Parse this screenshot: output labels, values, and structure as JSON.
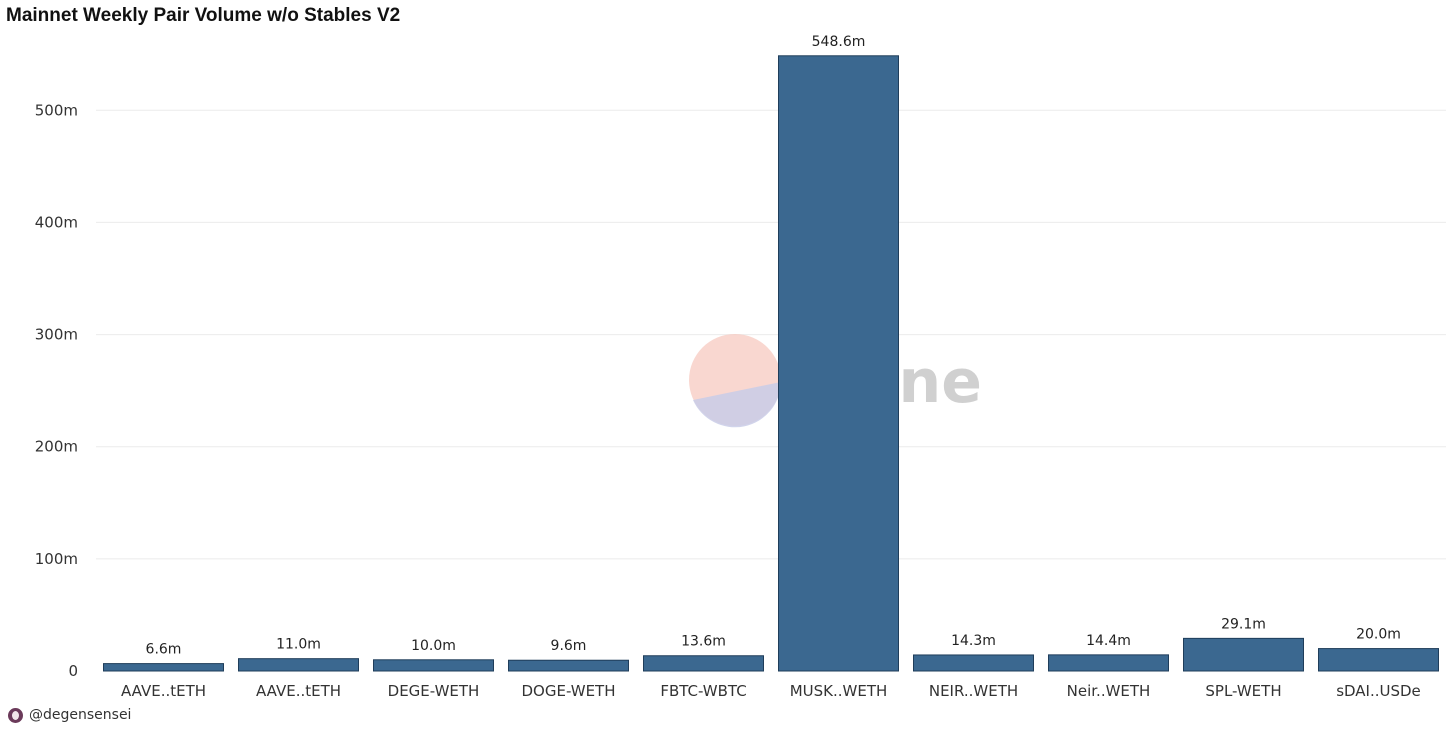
{
  "title": "Mainnet Weekly Pair Volume w/o Stables V2",
  "watermark": "Dune",
  "footer": {
    "author": "@degensensei"
  },
  "colors": {
    "bar": "#3b6890",
    "bar_border": "#1f3d5a",
    "grid": "#ebebeb"
  },
  "chart_data": {
    "type": "bar",
    "title": "Mainnet Weekly Pair Volume w/o Stables V2",
    "xlabel": "",
    "ylabel": "",
    "categories": [
      "AAVE..tETH",
      "AAVE..tETH",
      "DEGE-WETH",
      "DOGE-WETH",
      "FBTC-WBTC",
      "MUSK..WETH",
      "NEIR..WETH",
      "Neir..WETH",
      "SPL-WETH",
      "sDAI..USDe"
    ],
    "values": [
      6.6,
      11.0,
      10.0,
      9.6,
      13.6,
      548.6,
      14.3,
      14.4,
      29.1,
      20.0
    ],
    "value_labels": [
      "6.6m",
      "11.0m",
      "10.0m",
      "9.6m",
      "13.6m",
      "548.6m",
      "14.3m",
      "14.4m",
      "29.1m",
      "20.0m"
    ],
    "unit": "m",
    "ylim": [
      0,
      560
    ],
    "yticks": [
      0,
      100,
      200,
      300,
      400,
      500
    ],
    "ytick_labels": [
      "0",
      "100m",
      "200m",
      "300m",
      "400m",
      "500m"
    ],
    "grid": true,
    "legend": "none"
  }
}
